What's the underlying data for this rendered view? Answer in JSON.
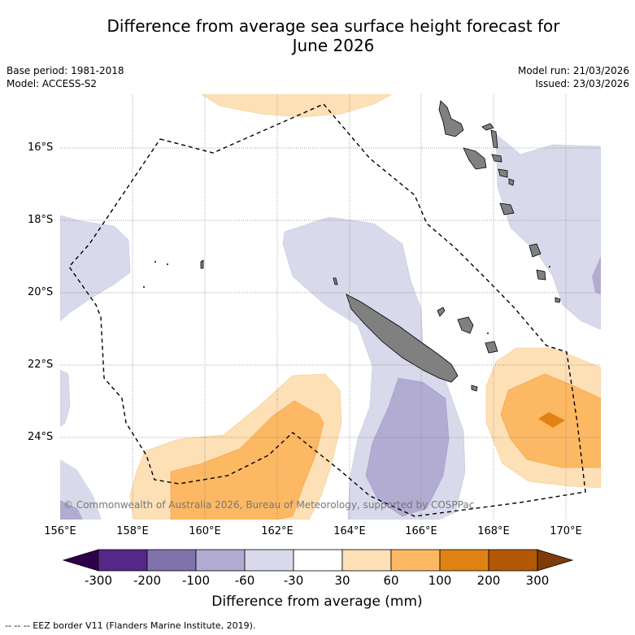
{
  "title": {
    "line1": "Difference from average sea surface height forecast for",
    "line2": "June 2026"
  },
  "meta_left": {
    "base_period": "Base period: 1981-2018",
    "model": "Model: ACCESS-S2"
  },
  "meta_right": {
    "model_run": "Model run: 21/03/2026",
    "issued": "Issued: 23/03/2026"
  },
  "lat_labels": [
    "16°S",
    "18°S",
    "20°S",
    "22°S",
    "24°S"
  ],
  "lon_labels": [
    "156°E",
    "158°E",
    "160°E",
    "162°E",
    "164°E",
    "166°E",
    "168°E",
    "170°E"
  ],
  "copyright": "© Commonwealth of Australia 2026, Bureau of Meteorology, supported by COSPPac",
  "colorbar": {
    "ticks": [
      "-300",
      "-200",
      "-100",
      "-60",
      "-30",
      "30",
      "60",
      "100",
      "200",
      "300"
    ],
    "colors": [
      "#2d004b",
      "#542788",
      "#8073ac",
      "#b2abd2",
      "#d8daeb",
      "#ffffff",
      "#fee0b6",
      "#fdb863",
      "#e08214",
      "#b35806",
      "#7f3b08"
    ],
    "title": "Difference from average (mm)"
  },
  "footer": "--  --  -- EEZ border V11 (Flanders Marine Institute, 2019)."
}
